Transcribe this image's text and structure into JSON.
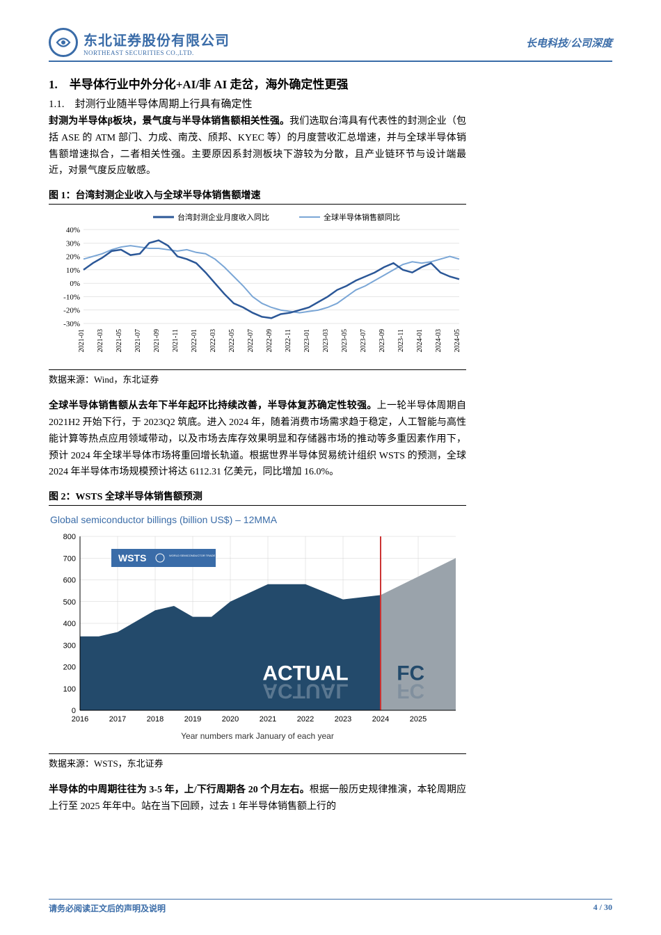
{
  "header": {
    "logo_cn": "东北证券股份有限公司",
    "logo_en": "NORTHEAST SECURITIES CO.,LTD.",
    "right_text": "长电科技/公司深度"
  },
  "section1": {
    "title": "1.　半导体行业中外分化+AI/非 AI 走岔，海外确定性更强",
    "sub_title": "1.1.　封测行业随半导体周期上行具有确定性",
    "para1_bold": "封测为半导体β板块，景气度与半导体销售额相关性强。",
    "para1_rest": "我们选取台湾具有代表性的封测企业（包括 ASE 的 ATM 部门、力成、南茂、颀邦、KYEC 等）的月度营收汇总增速，并与全球半导体销售额增速拟合，二者相关性强。主要原因系封测板块下游较为分散，且产业链环节与设计端最近，对景气度反应敏感。"
  },
  "figure1": {
    "title": "图 1：台湾封测企业收入与全球半导体销售额增速",
    "legend1": "台湾封测企业月度收入同比",
    "legend2": "全球半导体销售额同比",
    "y_ticks": [
      "40%",
      "30%",
      "20%",
      "10%",
      "0%",
      "-10%",
      "-20%",
      "-30%"
    ],
    "y_values": [
      40,
      30,
      20,
      10,
      0,
      -10,
      -20,
      -30
    ],
    "x_labels": [
      "2021-01",
      "2021-03",
      "2021-05",
      "2021-07",
      "2021-09",
      "2021-11",
      "2022-01",
      "2022-03",
      "2022-05",
      "2022-07",
      "2022-09",
      "2022-11",
      "2023-01",
      "2023-03",
      "2023-05",
      "2023-07",
      "2023-09",
      "2023-11",
      "2024-01",
      "2024-03",
      "2024-05"
    ],
    "series1_dark": [
      10,
      15,
      19,
      24,
      25,
      21,
      22,
      30,
      32,
      28,
      20,
      18,
      15,
      8,
      0,
      -8,
      -15,
      -18,
      -22,
      -25,
      -26,
      -23,
      -22,
      -20,
      -18,
      -14,
      -10,
      -5,
      -2,
      2,
      5,
      8,
      12,
      15,
      10,
      8,
      12,
      15,
      8,
      5,
      3
    ],
    "series2_light": [
      18,
      20,
      22,
      25,
      27,
      28,
      27,
      26,
      26,
      25,
      24,
      25,
      23,
      22,
      18,
      12,
      5,
      -2,
      -10,
      -15,
      -18,
      -20,
      -21,
      -22,
      -21,
      -20,
      -18,
      -15,
      -10,
      -5,
      -2,
      2,
      6,
      10,
      14,
      16,
      15,
      16,
      18,
      20,
      18
    ],
    "colors": {
      "series1": "#2b5797",
      "series2": "#7aa6d6",
      "grid": "#cccccc",
      "axis": "#888"
    },
    "source": "数据来源：Wind，东北证券"
  },
  "para2_bold": "全球半导体销售额从去年下半年起环比持续改善，半导体复苏确定性较强。",
  "para2_rest": "上一轮半导体周期自 2021H2 开始下行，于 2023Q2 筑底。进入 2024 年，随着消费市场需求趋于稳定，人工智能与高性能计算等热点应用领域带动，以及市场去库存效果明显和存储器市场的推动等多重因素作用下，预计 2024 年全球半导体市场将重回增长轨道。根据世界半导体贸易统计组织 WSTS 的预测，全球 2024 年半导体市场规模预计将达 6112.31 亿美元，同比增加 16.0%。",
  "figure2": {
    "title": "图 2：WSTS 全球半导体销售额预测",
    "chart_title": "Global semiconductor billings (billion US$) – 12MMA",
    "y_ticks": [
      "800",
      "700",
      "600",
      "500",
      "400",
      "300",
      "200",
      "100",
      "0"
    ],
    "y_values": [
      800,
      700,
      600,
      500,
      400,
      300,
      200,
      100,
      0
    ],
    "x_labels": [
      "2016",
      "2017",
      "2018",
      "2019",
      "2020",
      "2021",
      "2022",
      "2023",
      "2024",
      "2025"
    ],
    "actual_label": "ACTUAL",
    "fc_label": "FC",
    "wsts_label": "WSTS",
    "wsts_sub": "WORLD SEMICONDUCTOR TRADE STATISTICS",
    "divider_x": 2024,
    "area_actual": [
      340,
      340,
      360,
      460,
      480,
      430,
      430,
      500,
      580,
      580,
      510,
      530
    ],
    "area_fc_end": 700,
    "subtitle": "Year numbers mark January of each year",
    "colors": {
      "actual_fill": "#234a6b",
      "fc_fill": "#9aa3ab",
      "grid": "#d0d0d0",
      "axis": "#666",
      "title": "#3a6ca8",
      "divider": "#cc3333",
      "box": "#3a6ca8"
    },
    "source": "数据来源：WSTS，东北证券"
  },
  "para3_bold": "半导体的中周期往往为 3-5 年，上/下行周期各 20 个月左右。",
  "para3_rest": "根据一般历史规律推演，本轮周期应上行至 2025 年年中。站在当下回顾，过去 1 年半导体销售额上行的",
  "footer": {
    "left": "请务必阅读正文后的声明及说明",
    "right": "4 / 30"
  }
}
